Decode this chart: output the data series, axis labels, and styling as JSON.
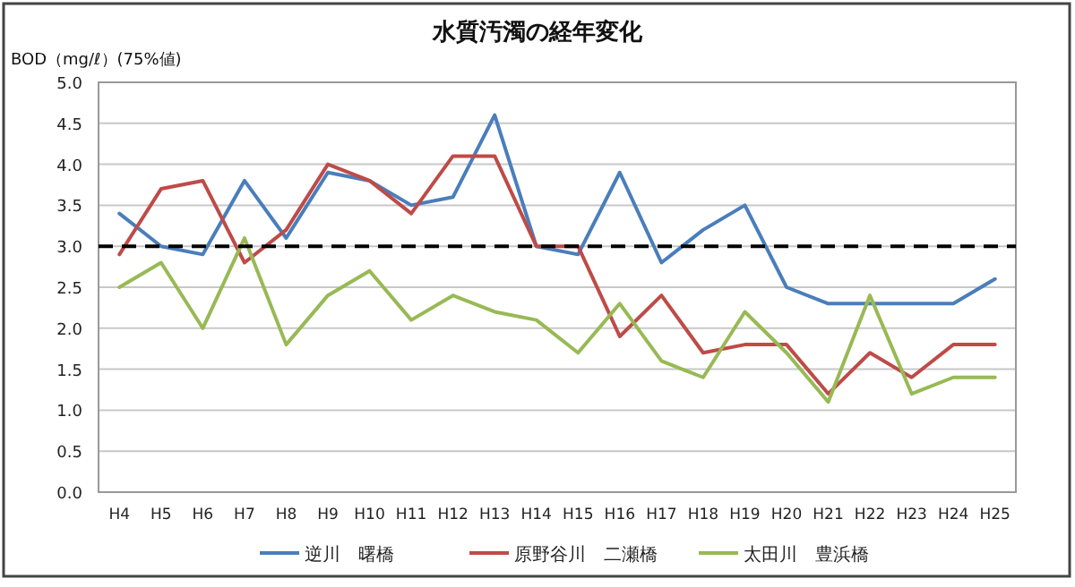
{
  "chart_data": {
    "type": "line",
    "title": "水質汚濁の経年変化",
    "ylabel": "BOD（mg/ℓ）(75%値)",
    "categories": [
      "H4",
      "H5",
      "H6",
      "H7",
      "H8",
      "H9",
      "H10",
      "H11",
      "H12",
      "H13",
      "H14",
      "H15",
      "H16",
      "H17",
      "H18",
      "H19",
      "H20",
      "H21",
      "H22",
      "H23",
      "H24",
      "H25"
    ],
    "series": [
      {
        "name": "逆川　曙橋",
        "color": "#4a7ebb",
        "values": [
          3.4,
          3.0,
          2.9,
          3.8,
          3.1,
          3.9,
          3.8,
          3.5,
          3.6,
          4.6,
          3.0,
          2.9,
          3.9,
          2.8,
          3.2,
          3.5,
          2.5,
          2.3,
          2.3,
          2.3,
          2.3,
          2.6
        ]
      },
      {
        "name": "原野谷川　二瀬橋",
        "color": "#be4b48",
        "values": [
          2.9,
          3.7,
          3.8,
          2.8,
          3.2,
          4.0,
          3.8,
          3.4,
          4.1,
          4.1,
          3.0,
          3.0,
          1.9,
          2.4,
          1.7,
          1.8,
          1.8,
          1.2,
          1.7,
          1.4,
          1.8,
          1.8
        ]
      },
      {
        "name": "太田川　豊浜橋",
        "color": "#98b954",
        "values": [
          2.5,
          2.8,
          2.0,
          3.1,
          1.8,
          2.4,
          2.7,
          2.1,
          2.4,
          2.2,
          2.1,
          1.7,
          2.3,
          1.6,
          1.4,
          2.2,
          1.7,
          1.1,
          2.4,
          1.2,
          1.4,
          1.4
        ]
      }
    ],
    "ylim": [
      0,
      5
    ],
    "yticks": [
      {
        "value": 0,
        "label": "0.0"
      },
      {
        "value": 0.5,
        "label": "0.5"
      },
      {
        "value": 1,
        "label": "1.0"
      },
      {
        "value": 1.5,
        "label": "1.5"
      },
      {
        "value": 2,
        "label": "2.0"
      },
      {
        "value": 2.5,
        "label": "2.5"
      },
      {
        "value": 3,
        "label": "3.0"
      },
      {
        "value": 3.5,
        "label": "3.5"
      },
      {
        "value": 4,
        "label": "4.0"
      },
      {
        "value": 4.5,
        "label": "4.5"
      },
      {
        "value": 5,
        "label": "5.0"
      }
    ],
    "grid": "y",
    "legend": "bottom",
    "line_style": "solid",
    "marker": "none",
    "ref_lines": [
      {
        "axis": "y",
        "value": 3,
        "color": "#000000",
        "line_style": "dashed"
      }
    ]
  }
}
